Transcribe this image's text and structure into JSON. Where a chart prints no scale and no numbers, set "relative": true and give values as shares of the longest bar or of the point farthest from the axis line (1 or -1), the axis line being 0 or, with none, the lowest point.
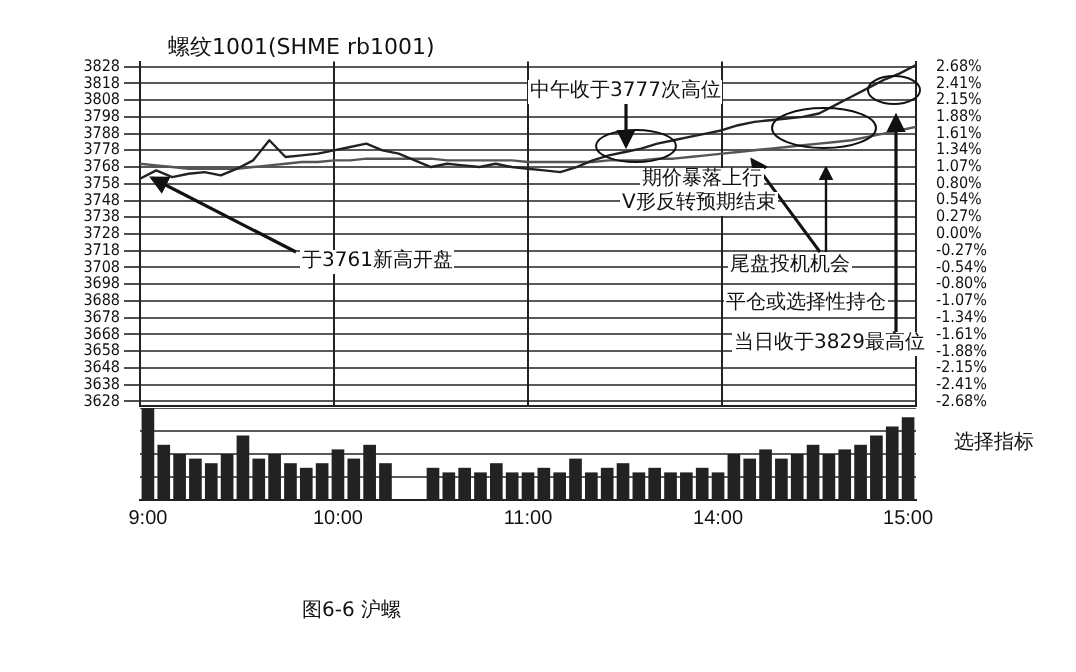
{
  "chart_data": [
    {
      "type": "line",
      "title": "螺纹1001(SHME rb1001)",
      "categories": [
        null,
        null,
        null,
        null,
        null,
        null,
        null,
        null,
        null,
        null,
        null,
        null,
        null,
        null,
        null,
        null,
        null,
        null,
        null,
        null,
        null,
        null,
        null,
        null,
        null,
        null,
        null,
        null,
        null,
        null,
        null,
        null,
        null,
        null,
        null,
        null,
        null,
        null,
        null,
        null,
        null,
        null,
        null,
        null,
        null,
        null,
        null,
        null,
        null
      ],
      "series": [
        {
          "color": "#222222",
          "values": [
            3761,
            3766,
            3762,
            3764,
            3765,
            3763,
            3767,
            3772,
            3784,
            3774,
            3775,
            3776,
            3778,
            3780,
            3782,
            3778,
            3776,
            3772,
            3768,
            3770,
            3769,
            3768,
            3770,
            3768,
            3767,
            3766,
            3765,
            3768,
            3772,
            3775,
            3777,
            3779,
            3782,
            3784,
            3786,
            3788,
            3790,
            3793,
            3795,
            3796,
            3797,
            3798,
            3800,
            3805,
            3810,
            3815,
            3820,
            3824,
            3829
          ]
        },
        {
          "color": "#555555",
          "values": [
            3770,
            3769,
            3768,
            3767,
            3767,
            3767,
            3767,
            3768,
            3769,
            3770,
            3771,
            3771,
            3772,
            3772,
            3773,
            3773,
            3773,
            3773,
            3773,
            3772,
            3772,
            3772,
            3772,
            3772,
            3771,
            3771,
            3771,
            3771,
            3771,
            3772,
            3772,
            3772,
            3773,
            3773,
            3774,
            3775,
            3776,
            3777,
            3778,
            3779,
            3780,
            3781,
            3782,
            3783,
            3784,
            3786,
            3788,
            3790,
            3792
          ]
        }
      ],
      "ylim": [
        3625,
        3831
      ],
      "yticks": [
        3628,
        3638,
        3648,
        3658,
        3668,
        3678,
        3688,
        3698,
        3708,
        3718,
        3728,
        3738,
        3748,
        3758,
        3768,
        3778,
        3788,
        3798,
        3808,
        3818,
        3828
      ],
      "y2lim": [
        -2.76,
        2.76
      ],
      "y2ticks": [
        {
          "value": -2.68,
          "label": "-2.68%"
        },
        {
          "value": -2.41,
          "label": "-2.41%"
        },
        {
          "value": -2.15,
          "label": "-2.15%"
        },
        {
          "value": -1.88,
          "label": "-1.88%"
        },
        {
          "value": -1.61,
          "label": "-1.61%"
        },
        {
          "value": -1.34,
          "label": "-1.34%"
        },
        {
          "value": -1.07,
          "label": "-1.07%"
        },
        {
          "value": -0.8,
          "label": "-0.80%"
        },
        {
          "value": -0.54,
          "label": "-0.54%"
        },
        {
          "value": -0.27,
          "label": "-0.27%"
        },
        {
          "value": 0,
          "label": "0.00%"
        },
        {
          "value": 0.27,
          "label": "0.27%"
        },
        {
          "value": 0.54,
          "label": "0.54%"
        },
        {
          "value": 0.8,
          "label": "0.80%"
        },
        {
          "value": 1.07,
          "label": "1.07%"
        },
        {
          "value": 1.34,
          "label": "1.34%"
        },
        {
          "value": 1.61,
          "label": "1.61%"
        },
        {
          "value": 1.88,
          "label": "1.88%"
        },
        {
          "value": 2.15,
          "label": "2.15%"
        },
        {
          "value": 2.41,
          "label": "2.41%"
        },
        {
          "value": 2.68,
          "label": "2.68%"
        }
      ],
      "annotations": [
        "于3761新高开盘",
        {
          "text": "中午收于3777次高位",
          "y": 3777
        },
        "期价暴落上行",
        "V形反转预期结束",
        "尾盘投机机会",
        "平仓或选择性持仓",
        "当日收于3829最高位"
      ],
      "grid": true,
      "legend": false,
      "tick_labels": "y",
      "marker": "none"
    },
    {
      "type": "bar",
      "relative": true,
      "categories": [
        "9:00",
        null,
        null,
        null,
        null,
        null,
        null,
        null,
        null,
        null,
        null,
        null,
        "10:00",
        null,
        null,
        null,
        null,
        null,
        null,
        null,
        null,
        null,
        null,
        null,
        "11:00",
        null,
        null,
        null,
        null,
        null,
        null,
        null,
        null,
        null,
        null,
        null,
        "14:00",
        null,
        null,
        null,
        null,
        null,
        null,
        null,
        null,
        null,
        null,
        null,
        "15:00"
      ],
      "values": [
        1,
        0.6,
        0.5,
        0.45,
        0.4,
        0.5,
        0.7,
        0.45,
        0.5,
        0.4,
        0.35,
        0.4,
        0.55,
        0.45,
        0.6,
        0.4,
        0,
        0,
        0.35,
        0.3,
        0.35,
        0.3,
        0.4,
        0.3,
        0.3,
        0.35,
        0.3,
        0.45,
        0.3,
        0.35,
        0.4,
        0.3,
        0.35,
        0.3,
        0.3,
        0.35,
        0.3,
        0.5,
        0.45,
        0.55,
        0.45,
        0.5,
        0.6,
        0.5,
        0.55,
        0.6,
        0.7,
        0.8,
        0.9
      ],
      "color": "#222222",
      "annotations": [
        "选择指标",
        "图6-6 沪螺"
      ],
      "grid": "y",
      "legend": false,
      "tick_labels": "x"
    }
  ]
}
